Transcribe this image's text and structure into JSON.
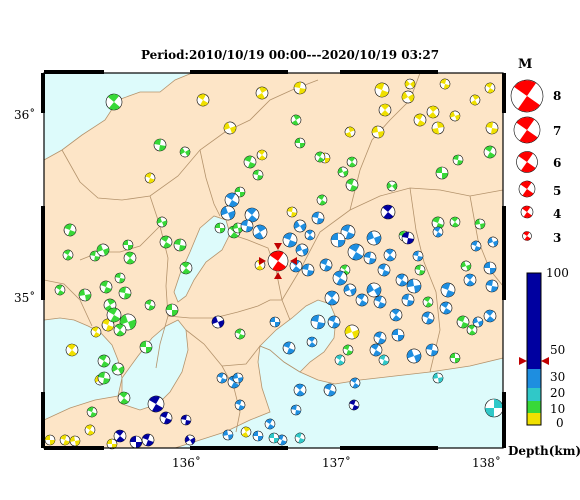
{
  "title": "Period:2010/10/19 00:00---2020/10/19 03:27",
  "axes": {
    "x_ticks": [
      "136˚",
      "137˚",
      "138˚"
    ],
    "y_ticks": [
      "36˚",
      "35˚"
    ]
  },
  "legend_magnitude": {
    "title": "M",
    "values": [
      "8",
      "7",
      "6",
      "5",
      "4",
      "3"
    ]
  },
  "depth_scale": {
    "label": "Depth(km)",
    "ticks": [
      "100",
      "50",
      "30",
      "20",
      "10",
      "0"
    ],
    "colors": [
      "#0000a0",
      "#1e8ee0",
      "#30c8c8",
      "#38d838",
      "#f0e000"
    ]
  },
  "main_event": {
    "color": "#ff0000"
  },
  "colors": {
    "sea": "#ddfbfb",
    "land": "#fde5c7",
    "lake": "#ddfbfb",
    "boundary": "#b4936c"
  }
}
